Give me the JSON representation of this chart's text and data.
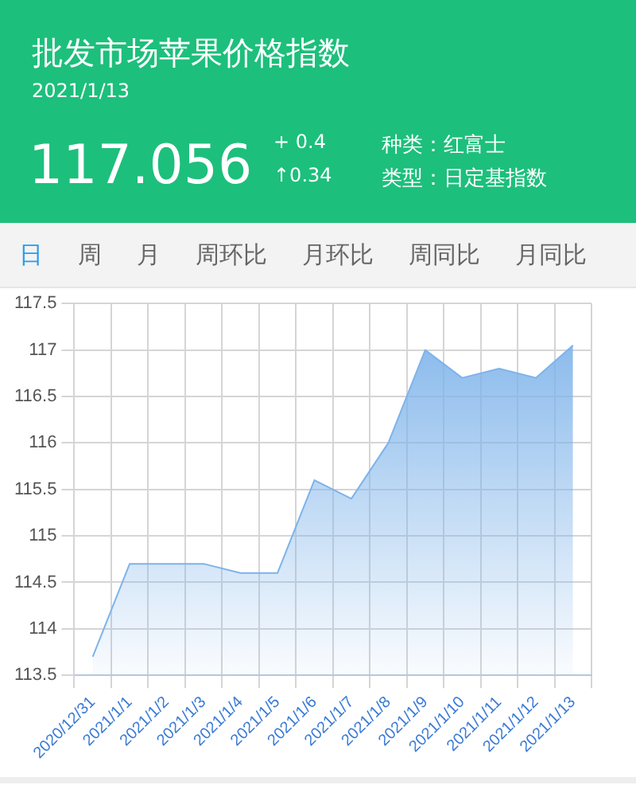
{
  "chart_data": {
    "type": "area",
    "title": "批发市场苹果价格指数",
    "subtitle": "2021/1/13",
    "annotations": [
      "117.056",
      "+ 0.4",
      "↑0.34",
      "种类：红富士",
      "类型：日定基指数",
      "日",
      "周",
      "月",
      "周环比",
      "月环比",
      "周同比",
      "月同比"
    ],
    "categories": [
      "2020/12/31",
      "2021/1/1",
      "2021/1/2",
      "2021/1/3",
      "2021/1/4",
      "2021/1/5",
      "2021/1/6",
      "2021/1/7",
      "2021/1/8",
      "2021/1/9",
      "2021/1/10",
      "2021/1/11",
      "2021/1/12",
      "2021/1/13"
    ],
    "series": [
      {
        "color": "#7eb3ea",
        "values": [
          113.7,
          114.7,
          114.7,
          114.7,
          114.6,
          114.6,
          115.6,
          115.4,
          116.0,
          117.0,
          116.7,
          116.8,
          116.7,
          117.05
        ]
      }
    ],
    "ylim": [
      113.5,
      117.5
    ],
    "yticks": [
      113.5,
      114,
      114.5,
      115,
      115.5,
      116,
      116.5,
      117,
      117.5
    ],
    "grid": true,
    "legend": false,
    "marker": "none"
  }
}
